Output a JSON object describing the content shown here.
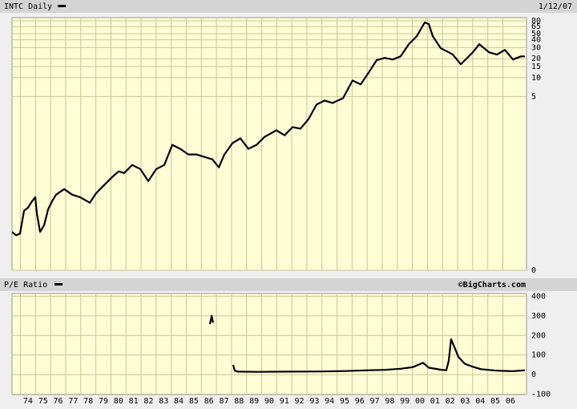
{
  "chart_data": [
    {
      "type": "line",
      "title": "INTC Daily",
      "date": "1/12/07",
      "log_scale": true,
      "grid": true,
      "xlim": [
        1973.44,
        2007.57
      ],
      "ylim": [
        0.0086,
        90
      ],
      "yticks": [
        80,
        65,
        50,
        40,
        30,
        20,
        15,
        10,
        5,
        {
          "value": 0.0086,
          "label": "0"
        }
      ],
      "series": [
        {
          "name": "INTC",
          "color": "#000000",
          "x": [
            1973.44,
            1973.71,
            1973.97,
            1974.24,
            1974.5,
            1974.77,
            1974.98,
            1975.09,
            1975.3,
            1975.57,
            1975.83,
            1976.1,
            1976.36,
            1976.9,
            1977.43,
            1977.96,
            1978.6,
            1979.02,
            1979.55,
            1980.09,
            1980.51,
            1980.88,
            1981.41,
            1981.95,
            1982.48,
            1983.01,
            1983.54,
            1984.07,
            1984.6,
            1985.14,
            1985.67,
            1986.2,
            1986.73,
            1987.16,
            1987.53,
            1988.06,
            1988.59,
            1989.12,
            1989.66,
            1990.19,
            1990.98,
            1991.52,
            1992.05,
            1992.58,
            1993.11,
            1993.64,
            1994.17,
            1994.71,
            1995.4,
            1996.03,
            1996.57,
            1997.1,
            1997.63,
            1998.16,
            1998.69,
            1999.22,
            1999.76,
            2000.29,
            2000.82,
            2001.09,
            2001.35,
            2001.88,
            2002.41,
            2002.68,
            2003.21,
            2003.48,
            2004.01,
            2004.44,
            2005.08,
            2005.61,
            2006.14,
            2006.67,
            2007.2,
            2007.46
          ],
          "values": [
            0.035,
            0.031,
            0.033,
            0.076,
            0.085,
            0.108,
            0.125,
            0.069,
            0.035,
            0.045,
            0.08,
            0.108,
            0.137,
            0.168,
            0.137,
            0.125,
            0.102,
            0.145,
            0.195,
            0.262,
            0.322,
            0.303,
            0.407,
            0.351,
            0.226,
            0.351,
            0.407,
            0.851,
            0.735,
            0.598,
            0.598,
            0.547,
            0.501,
            0.373,
            0.598,
            0.903,
            1.08,
            0.735,
            0.851,
            1.14,
            1.45,
            1.21,
            1.63,
            1.54,
            2.19,
            3.72,
            4.31,
            3.95,
            4.71,
            9.0,
            7.78,
            12.1,
            18.9,
            20.6,
            19.4,
            21.8,
            34.0,
            45.7,
            75.4,
            71.1,
            45.7,
            29.3,
            25.3,
            23.2,
            16.3,
            18.9,
            25.3,
            34.0,
            25.3,
            23.2,
            27.6,
            19.4,
            21.8,
            21.8
          ]
        }
      ]
    },
    {
      "type": "line",
      "title": "P/E Ratio",
      "source": "©BigCharts.com",
      "grid": true,
      "xlim": [
        1973.44,
        2007.57
      ],
      "ylim": [
        -102,
        414
      ],
      "yticks": [
        400,
        300,
        200,
        100,
        0,
        -100
      ],
      "xticks": [
        {
          "value": 1974,
          "label": "74"
        },
        {
          "value": 1975,
          "label": "75"
        },
        {
          "value": 1976,
          "label": "76"
        },
        {
          "value": 1977,
          "label": "77"
        },
        {
          "value": 1978,
          "label": "78"
        },
        {
          "value": 1979,
          "label": "79"
        },
        {
          "value": 1980,
          "label": "80"
        },
        {
          "value": 1981,
          "label": "81"
        },
        {
          "value": 1982,
          "label": "82"
        },
        {
          "value": 1983,
          "label": "83"
        },
        {
          "value": 1984,
          "label": "84"
        },
        {
          "value": 1985,
          "label": "85"
        },
        {
          "value": 1986,
          "label": "86"
        },
        {
          "value": 1987,
          "label": "87"
        },
        {
          "value": 1988,
          "label": "88"
        },
        {
          "value": 1989,
          "label": "89"
        },
        {
          "value": 1990,
          "label": "90"
        },
        {
          "value": 1991,
          "label": "91"
        },
        {
          "value": 1992,
          "label": "92"
        },
        {
          "value": 1993,
          "label": "93"
        },
        {
          "value": 1994,
          "label": "94"
        },
        {
          "value": 1995,
          "label": "95"
        },
        {
          "value": 1996,
          "label": "96"
        },
        {
          "value": 1997,
          "label": "97"
        },
        {
          "value": 1998,
          "label": "98"
        },
        {
          "value": 1999,
          "label": "99"
        },
        {
          "value": 2000,
          "label": "00"
        },
        {
          "value": 2001,
          "label": "01"
        },
        {
          "value": 2002,
          "label": "02"
        },
        {
          "value": 2003,
          "label": "03"
        },
        {
          "value": 2004,
          "label": "04"
        },
        {
          "value": 2005,
          "label": "05"
        },
        {
          "value": 2006,
          "label": "06"
        }
      ],
      "series": [
        {
          "name": "P/E",
          "color": "#000000",
          "x": [
            1986.57,
            1986.68,
            1986.78,
            1987.5,
            1988.11,
            1988.22,
            1988.43,
            1989.66,
            1991.78,
            1993.91,
            1995.5,
            1997.1,
            1998.16,
            1999.22,
            2000.02,
            2000.71,
            2001.09,
            2001.88,
            2002.25,
            2002.41,
            2002.57,
            2002.79,
            2003.05,
            2003.48,
            2004.01,
            2004.54,
            2005.61,
            2006.67,
            2007.46
          ],
          "values": [
            258,
            300,
            265,
            null,
            49,
            20,
            15,
            14,
            15,
            16,
            18,
            22,
            24,
            30,
            38,
            60,
            35,
            25,
            22,
            70,
            180,
            140,
            90,
            55,
            40,
            28,
            20,
            17,
            22
          ]
        }
      ]
    }
  ]
}
